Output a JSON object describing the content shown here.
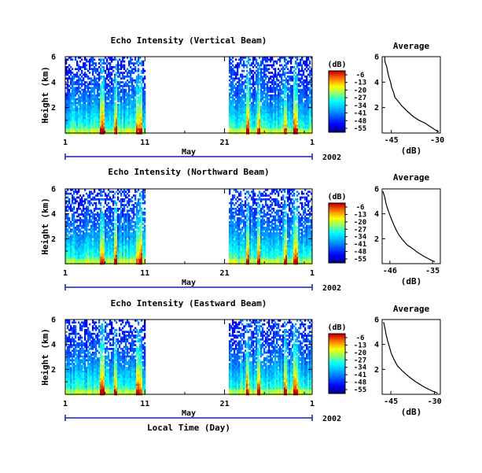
{
  "chart_data": [
    {
      "type": "heatmap",
      "title": "Echo Intensity (Vertical Beam)",
      "ylabel": "Height (km)",
      "x_ticks": [
        "1",
        "11",
        "21",
        "1"
      ],
      "month_label": "May",
      "year_label": "2002",
      "y_ticks": [
        "6",
        "4",
        "2"
      ],
      "ylim": [
        0,
        6
      ],
      "data_gap_days": [
        11,
        21.5
      ],
      "colorbar": {
        "unit": "(dB)",
        "ticks": [
          "-6",
          "-13",
          "-20",
          "-27",
          "-34",
          "-41",
          "-48",
          "-55"
        ]
      },
      "average": {
        "title": "Average",
        "xlabel": "(dB)",
        "x_ticks": [
          "-45",
          "-30"
        ],
        "y_ticks": [
          "6",
          "4",
          "2"
        ],
        "xlim": [
          -48,
          -29
        ],
        "points": [
          [
            -47.2,
            6.0
          ],
          [
            -47.0,
            5.6
          ],
          [
            -46.6,
            5.2
          ],
          [
            -46.2,
            4.8
          ],
          [
            -45.8,
            4.4
          ],
          [
            -45.4,
            4.0
          ],
          [
            -44.9,
            3.6
          ],
          [
            -44.4,
            3.2
          ],
          [
            -43.8,
            2.8
          ],
          [
            -42.7,
            2.5
          ],
          [
            -41.4,
            2.1
          ],
          [
            -39.7,
            1.7
          ],
          [
            -38.0,
            1.3
          ],
          [
            -36.0,
            1.0
          ],
          [
            -34.0,
            0.8
          ],
          [
            -32.2,
            0.5
          ],
          [
            -30.8,
            0.25
          ],
          [
            -29.5,
            0.1
          ]
        ]
      }
    },
    {
      "type": "heatmap",
      "title": "Echo Intensity (Northward Beam)",
      "ylabel": "Height (km)",
      "x_ticks": [
        "1",
        "11",
        "21",
        "1"
      ],
      "month_label": "May",
      "year_label": "2002",
      "y_ticks": [
        "6",
        "4",
        "2"
      ],
      "ylim": [
        0,
        6
      ],
      "data_gap_days": [
        11,
        21.5
      ],
      "colorbar": {
        "unit": "(dB)",
        "ticks": [
          "-6",
          "-13",
          "-20",
          "-27",
          "-34",
          "-41",
          "-48",
          "-55"
        ]
      },
      "average": {
        "title": "Average",
        "xlabel": "(dB)",
        "x_ticks": [
          "-46",
          "-35"
        ],
        "y_ticks": [
          "6",
          "4",
          "2"
        ],
        "xlim": [
          -48,
          -33
        ],
        "points": [
          [
            -47.8,
            5.8
          ],
          [
            -47.4,
            5.3
          ],
          [
            -46.9,
            4.8
          ],
          [
            -46.4,
            4.3
          ],
          [
            -45.9,
            3.8
          ],
          [
            -45.2,
            3.3
          ],
          [
            -44.5,
            2.8
          ],
          [
            -43.6,
            2.3
          ],
          [
            -42.6,
            1.9
          ],
          [
            -41.5,
            1.5
          ],
          [
            -40.2,
            1.2
          ],
          [
            -38.8,
            0.9
          ],
          [
            -37.3,
            0.6
          ],
          [
            -35.8,
            0.35
          ],
          [
            -34.4,
            0.15
          ]
        ]
      }
    },
    {
      "type": "heatmap",
      "title": "Echo Intensity (Eastward Beam)",
      "ylabel": "Height (km)",
      "xlabel": "Local Time (Day)",
      "x_ticks": [
        "1",
        "11",
        "21",
        "1"
      ],
      "month_label": "May",
      "year_label": "2002",
      "y_ticks": [
        "6",
        "4",
        "2"
      ],
      "ylim": [
        0,
        6
      ],
      "data_gap_days": [
        11,
        21.5
      ],
      "colorbar": {
        "unit": "(dB)",
        "ticks": [
          "-6",
          "-13",
          "-20",
          "-27",
          "-34",
          "-41",
          "-48",
          "-55"
        ]
      },
      "average": {
        "title": "Average",
        "xlabel": "(dB)",
        "x_ticks": [
          "-45",
          "-30"
        ],
        "y_ticks": [
          "6",
          "4",
          "2"
        ],
        "xlim": [
          -48,
          -28
        ],
        "points": [
          [
            -47.4,
            5.8
          ],
          [
            -47.0,
            5.3
          ],
          [
            -46.6,
            4.8
          ],
          [
            -46.0,
            4.3
          ],
          [
            -45.5,
            3.8
          ],
          [
            -44.8,
            3.3
          ],
          [
            -43.9,
            2.8
          ],
          [
            -42.7,
            2.3
          ],
          [
            -41.2,
            1.9
          ],
          [
            -39.3,
            1.5
          ],
          [
            -37.2,
            1.1
          ],
          [
            -35.0,
            0.8
          ],
          [
            -32.8,
            0.5
          ],
          [
            -30.6,
            0.25
          ],
          [
            -28.8,
            0.1
          ]
        ]
      }
    }
  ]
}
